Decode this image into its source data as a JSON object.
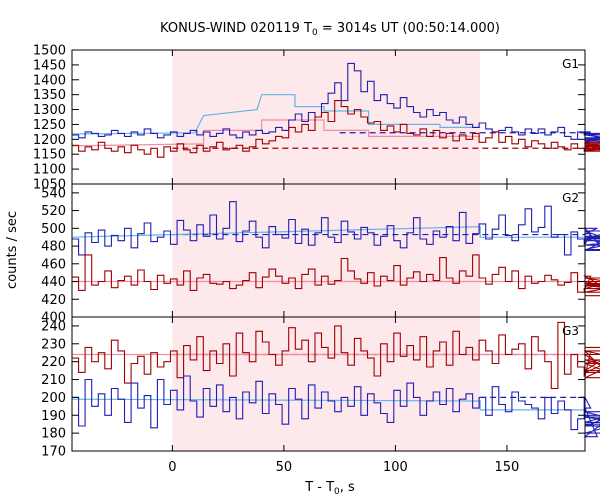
{
  "chart_data": {
    "type": "line",
    "title": {
      "prefix": "KONUS-WIND 020119 T",
      "sub": "0",
      "suffix": " = 3014s UT (00:50:14.000)"
    },
    "xlabel": {
      "prefix": "T - T",
      "sub": "0",
      "suffix": ", s"
    },
    "ylabel": "counts / sec",
    "xlim": [
      -45,
      185
    ],
    "xticks": [
      0,
      50,
      100,
      150
    ],
    "highlight_interval": [
      0,
      138
    ],
    "grid": false,
    "colors": {
      "red": "#a00000",
      "blue": "#1f1fb4",
      "shade": "#fde8eb",
      "light_red": "#f28ca0",
      "light_blue": "#66b3e6"
    },
    "panels": [
      {
        "label": "G1",
        "ylim": [
          1050,
          1500
        ],
        "yticks": [
          1050,
          1100,
          1150,
          1200,
          1250,
          1300,
          1350,
          1400,
          1450,
          1500
        ],
        "bin_start": -45,
        "bin_width": 2.944,
        "series": [
          {
            "color": "blue",
            "values": [
              1215,
              1205,
              1225,
              1220,
              1210,
              1215,
              1230,
              1220,
              1210,
              1225,
              1215,
              1235,
              1220,
              1205,
              1215,
              1225,
              1210,
              1220,
              1230,
              1215,
              1225,
              1210,
              1220,
              1235,
              1215,
              1205,
              1225,
              1215,
              1230,
              1220,
              1225,
              1240,
              1230,
              1265,
              1285,
              1260,
              1290,
              1275,
              1320,
              1355,
              1390,
              1330,
              1455,
              1430,
              1360,
              1395,
              1330,
              1350,
              1320,
              1305,
              1340,
              1310,
              1290,
              1275,
              1300,
              1280,
              1290,
              1265,
              1255,
              1275,
              1250,
              1240,
              1255,
              1235,
              1225,
              1230,
              1240,
              1225,
              1215,
              1235,
              1220,
              1235,
              1215,
              1225,
              1240,
              1210,
              1200,
              1225,
              1215,
              1225,
              1205,
              1190,
              1215,
              1200,
              1220,
              1205,
              1195,
              1215,
              1185
            ]
          },
          {
            "color": "red",
            "values": [
              1180,
              1160,
              1175,
              1165,
              1190,
              1170,
              1160,
              1175,
              1155,
              1180,
              1165,
              1150,
              1170,
              1140,
              1175,
              1160,
              1185,
              1165,
              1155,
              1180,
              1160,
              1175,
              1190,
              1165,
              1170,
              1180,
              1160,
              1175,
              1200,
              1185,
              1195,
              1210,
              1205,
              1240,
              1225,
              1250,
              1230,
              1275,
              1290,
              1260,
              1330,
              1310,
              1285,
              1300,
              1275,
              1255,
              1260,
              1230,
              1245,
              1225,
              1250,
              1220,
              1215,
              1235,
              1210,
              1230,
              1205,
              1220,
              1195,
              1215,
              1200,
              1220,
              1190,
              1205,
              1225,
              1190,
              1210,
              1185,
              1200,
              1175,
              1195,
              1185,
              1170,
              1190,
              1175,
              1165,
              1185,
              1170,
              1160,
              1180,
              1170,
              1190,
              1160,
              1175,
              1185,
              1165,
              1180,
              1170,
              1175
            ]
          }
        ],
        "fits": [
          {
            "color": "light_blue",
            "steps": [
              [
                -45,
                1218
              ],
              [
                10,
                1222
              ],
              [
                14,
                1280
              ],
              [
                38,
                1300
              ],
              [
                40,
                1350
              ],
              [
                55,
                1350
              ],
              [
                55,
                1310
              ],
              [
                68,
                1310
              ],
              [
                68,
                1295
              ],
              [
                88,
                1295
              ],
              [
                88,
                1250
              ],
              [
                120,
                1250
              ],
              [
                120,
                1240
              ],
              [
                138,
                1240
              ]
            ]
          },
          {
            "color": "light_red",
            "steps": [
              [
                -45,
                1178
              ],
              [
                14,
                1185
              ],
              [
                14,
                1230
              ],
              [
                40,
                1230
              ],
              [
                40,
                1265
              ],
              [
                68,
                1265
              ],
              [
                68,
                1230
              ],
              [
                88,
                1230
              ],
              [
                88,
                1210
              ],
              [
                138,
                1210
              ]
            ]
          }
        ],
        "backgrounds": [
          {
            "color": "blue",
            "value": 1222,
            "from": 75
          },
          {
            "color": "red",
            "value": 1170,
            "from": 0
          }
        ]
      },
      {
        "label": "G2",
        "ylim": [
          400,
          550
        ],
        "yticks": [
          400,
          420,
          440,
          460,
          480,
          500,
          520,
          540
        ],
        "bin_start": -45,
        "bin_width": 2.944,
        "series": [
          {
            "color": "blue",
            "values": [
              488,
              470,
              495,
              484,
              498,
              480,
              492,
              486,
              500,
              478,
              494,
              506,
              485,
              490,
              497,
              482,
              509,
              498,
              486,
              504,
              491,
              515,
              488,
              500,
              530,
              485,
              497,
              508,
              490,
              478,
              502,
              493,
              489,
              510,
              483,
              499,
              481,
              495,
              512,
              490,
              484,
              508,
              496,
              488,
              501,
              495,
              481,
              491,
              503,
              486,
              478,
              495,
              512,
              488,
              482,
              497,
              490,
              502,
              486,
              518,
              483,
              494,
              505,
              488,
              499,
              515,
              492,
              486,
              504,
              522,
              496,
              501,
              525,
              490,
              493,
              470,
              496,
              488,
              482,
              494,
              500,
              475,
              489,
              497,
              481,
              488,
              476,
              491,
              486
            ]
          },
          {
            "color": "red",
            "values": [
              445,
              430,
              470,
              436,
              440,
              452,
              433,
              441,
              446,
              436,
              453,
              440,
              431,
              447,
              438,
              443,
              436,
              452,
              430,
              444,
              448,
              438,
              437,
              440,
              432,
              436,
              441,
              450,
              433,
              445,
              454,
              446,
              438,
              444,
              432,
              448,
              454,
              436,
              446,
              437,
              441,
              466,
              452,
              443,
              438,
              450,
              435,
              446,
              441,
              458,
              436,
              444,
              451,
              440,
              448,
              441,
              467,
              444,
              438,
              452,
              446,
              470,
              444,
              437,
              448,
              456,
              440,
              452,
              432,
              446,
              438,
              440,
              447,
              442,
              436,
              439,
              450,
              428,
              432,
              446,
              438,
              435,
              440,
              432,
              444,
              436,
              428,
              440,
              424
            ]
          }
        ],
        "fits": [
          {
            "color": "light_blue",
            "steps": [
              [
                -45,
                490
              ],
              [
                138,
                502
              ],
              [
                138,
                490
              ],
              [
                185,
                490
              ]
            ]
          },
          {
            "color": "light_red",
            "steps": [
              [
                -45,
                440
              ],
              [
                185,
                440
              ]
            ]
          }
        ],
        "backgrounds": [
          {
            "color": "blue",
            "value": 493,
            "from": 0
          }
        ]
      },
      {
        "label": "G3",
        "ylim": [
          170,
          245
        ],
        "yticks": [
          170,
          180,
          190,
          200,
          210,
          220,
          230,
          240
        ],
        "bin_start": -45,
        "bin_width": 2.944,
        "series": [
          {
            "color": "red",
            "values": [
              222,
              214,
              228,
              220,
              225,
              216,
              232,
              226,
              208,
              219,
              223,
              213,
              225,
              217,
              220,
              226,
              211,
              229,
              221,
              234,
              215,
              226,
              219,
              230,
              212,
              236,
              225,
              220,
              237,
              231,
              224,
              218,
              226,
              239,
              227,
              232,
              220,
              236,
              228,
              222,
              240,
              225,
              218,
              233,
              226,
              222,
              212,
              230,
              220,
              236,
              223,
              229,
              221,
              234,
              217,
              226,
              231,
              218,
              237,
              224,
              228,
              221,
              232,
              226,
              219,
              235,
              224,
              227,
              230,
              216,
              234,
              226,
              220,
              205,
              242,
              213,
              224,
              217,
              212,
              226,
              219,
              215,
              224,
              211,
              221,
              214,
              226,
              219,
              228
            ]
          },
          {
            "color": "blue",
            "values": [
              200,
              184,
              210,
              195,
              202,
              190,
              205,
              199,
              186,
              208,
              194,
              201,
              183,
              210,
              196,
              204,
              193,
              212,
              198,
              189,
              205,
              195,
              207,
              192,
              200,
              188,
              203,
              197,
              209,
              191,
              202,
              196,
              185,
              205,
              199,
              188,
              207,
              194,
              203,
              198,
              192,
              200,
              195,
              206,
              190,
              202,
              197,
              191,
              186,
              204,
              195,
              208,
              200,
              190,
              198,
              203,
              196,
              205,
              192,
              199,
              202,
              194,
              200,
              190,
              206,
              196,
              192,
              203,
              198,
              196,
              194,
              188,
              200,
              191,
              198,
              193,
              182,
              188,
              200,
              194,
              178,
              186,
              190,
              184,
              192,
              185,
              180,
              189,
              184
            ]
          }
        ],
        "fits": [
          {
            "color": "light_red",
            "steps": [
              [
                -45,
                224
              ],
              [
                185,
                224
              ]
            ]
          },
          {
            "color": "light_blue",
            "steps": [
              [
                -45,
                199
              ],
              [
                138,
                198
              ],
              [
                138,
                193
              ],
              [
                185,
                193
              ]
            ]
          }
        ],
        "backgrounds": [
          {
            "color": "red",
            "value": 224,
            "from": 0
          },
          {
            "color": "blue",
            "value": 200,
            "from": 138
          }
        ]
      }
    ]
  }
}
